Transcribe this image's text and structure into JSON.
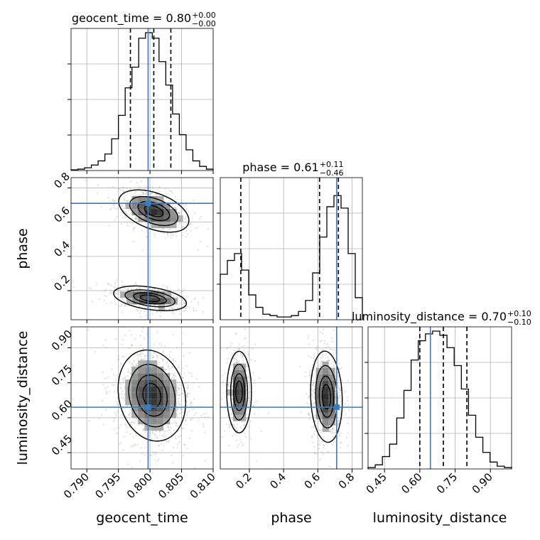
{
  "chart_data": {
    "type": "corner",
    "truth_color": "#3b7bbf",
    "parameters": [
      {
        "name": "geocent_time",
        "median": 0.8,
        "plus": "+0.00",
        "minus": "−0.00",
        "title": "geocent_time = 0.80",
        "range": [
          0.7875,
          0.81
        ],
        "ticks": [
          0.79,
          0.795,
          0.8,
          0.805,
          0.81
        ],
        "tick_labels": [
          "0.790",
          "0.795",
          "0.800",
          "0.805",
          "0.810"
        ],
        "quantiles": [
          0.7969,
          0.8006,
          0.8033
        ],
        "truth": 0.7997
      },
      {
        "name": "phase",
        "median": 0.61,
        "plus": "+0.11",
        "minus": "−0.46",
        "title": "phase = 0.61",
        "range": [
          0.03,
          0.86
        ],
        "ticks": [
          0.2,
          0.4,
          0.6,
          0.8
        ],
        "tick_labels": [
          "0.2",
          "0.4",
          "0.6",
          "0.8"
        ],
        "quantiles": [
          0.15,
          0.61,
          0.72
        ],
        "truth": 0.71
      },
      {
        "name": "luminosity_distance",
        "median": 0.7,
        "plus": "+0.10",
        "minus": "−0.10",
        "title": "luminosity_distance = 0.70",
        "range": [
          0.38,
          0.99
        ],
        "ticks": [
          0.45,
          0.6,
          0.75,
          0.9
        ],
        "tick_labels": [
          "0.45",
          "0.60",
          "0.75",
          "0.90"
        ],
        "quantiles": [
          0.6,
          0.7,
          0.8
        ],
        "truth": 0.645
      }
    ],
    "histograms": {
      "geocent_time": [
        0.005,
        0.01,
        0.02,
        0.04,
        0.07,
        0.12,
        0.23,
        0.4,
        0.6,
        0.75,
        0.96,
        1.0,
        0.96,
        0.79,
        0.62,
        0.41,
        0.26,
        0.15,
        0.07,
        0.03,
        0.01
      ],
      "phase": [
        0.33,
        0.43,
        0.48,
        0.36,
        0.18,
        0.09,
        0.04,
        0.03,
        0.02,
        0.02,
        0.03,
        0.06,
        0.14,
        0.34,
        0.6,
        0.82,
        0.9,
        0.81,
        0.48,
        0.16
      ],
      "luminosity_distance": [
        0.01,
        0.03,
        0.09,
        0.18,
        0.37,
        0.57,
        0.79,
        0.93,
        0.98,
        1.0,
        0.97,
        0.88,
        0.75,
        0.58,
        0.39,
        0.23,
        0.12,
        0.05,
        0.02,
        0.01
      ]
    },
    "pairs": [
      {
        "x": "geocent_time",
        "y": "phase",
        "modes": [
          {
            "mx": 0.8006,
            "my": 0.665,
            "sx": 0.0027,
            "sy": 0.06,
            "rho": -0.45,
            "w": 0.55
          },
          {
            "mx": 0.8,
            "my": 0.155,
            "sx": 0.0028,
            "sy": 0.035,
            "rho": -0.4,
            "w": 0.45
          }
        ]
      },
      {
        "x": "geocent_time",
        "y": "luminosity_distance",
        "modes": [
          {
            "mx": 0.8003,
            "my": 0.695,
            "sx": 0.0026,
            "sy": 0.095,
            "rho": -0.15,
            "w": 1.0
          }
        ]
      },
      {
        "x": "phase",
        "y": "luminosity_distance",
        "modes": [
          {
            "mx": 0.65,
            "my": 0.69,
            "sx": 0.045,
            "sy": 0.095,
            "rho": -0.1,
            "w": 0.62
          },
          {
            "mx": 0.14,
            "my": 0.71,
            "sx": 0.035,
            "sy": 0.085,
            "rho": 0.0,
            "w": 0.38
          }
        ]
      }
    ]
  }
}
